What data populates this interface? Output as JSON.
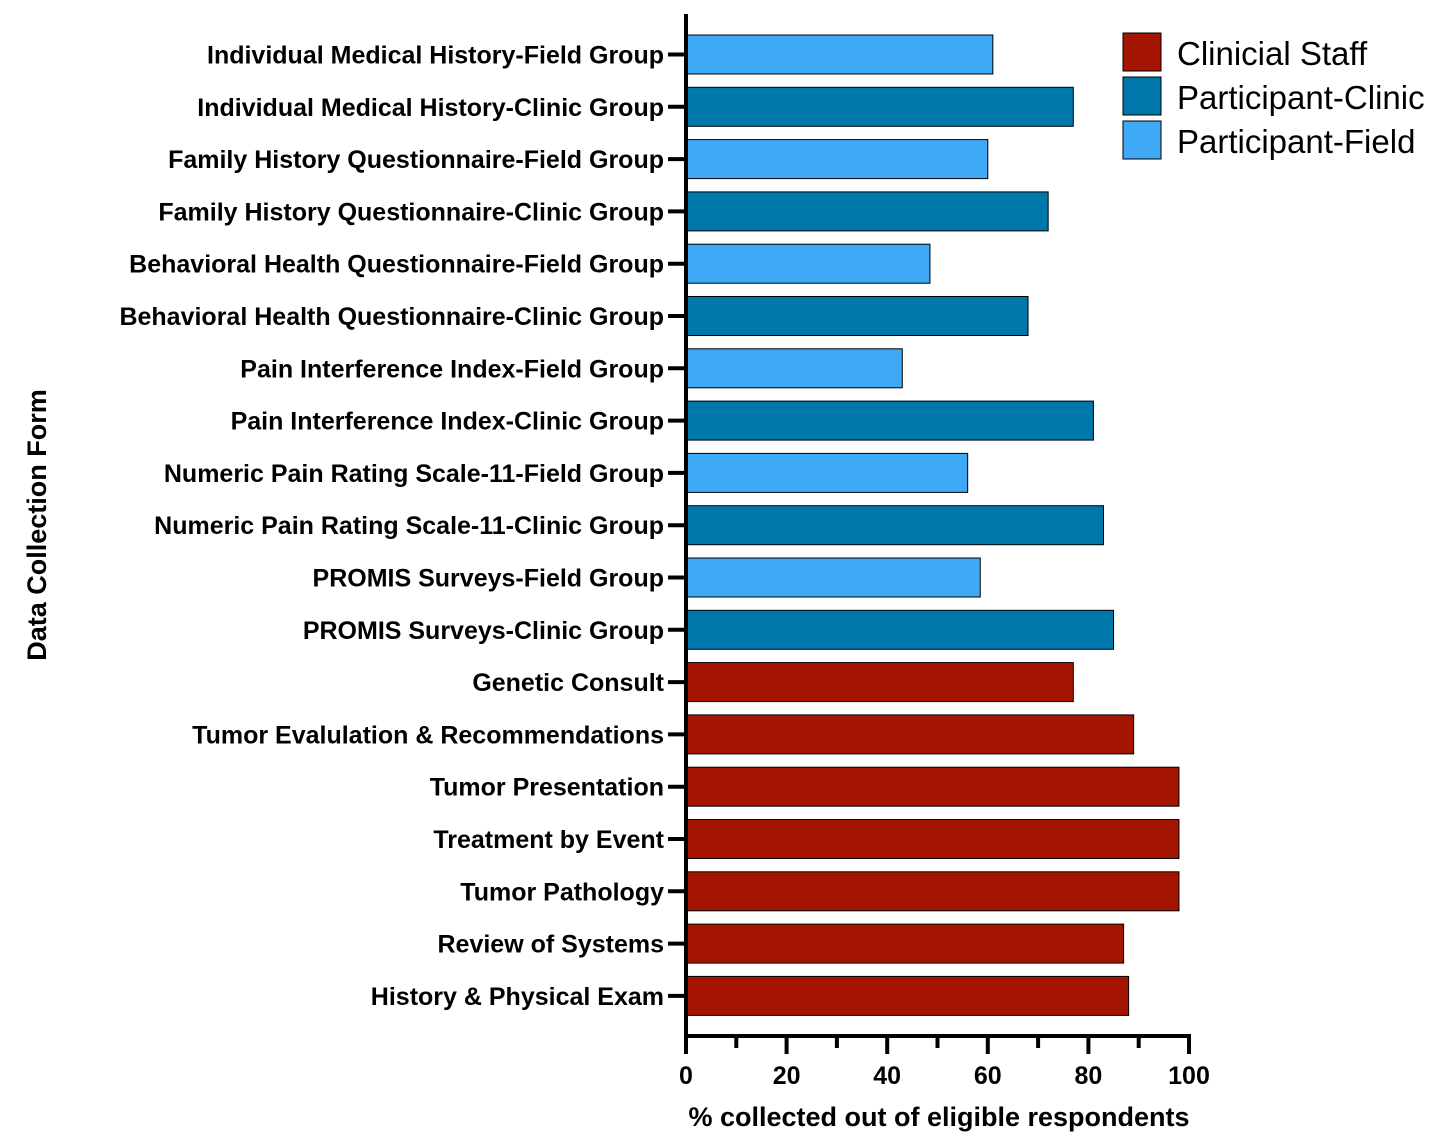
{
  "chart_data": {
    "type": "bar",
    "orientation": "horizontal",
    "xlabel": "% collected out of eligible respondents",
    "ylabel": "Data Collection Form",
    "xlim": [
      0,
      100
    ],
    "xticks": [
      0,
      20,
      40,
      60,
      80,
      100
    ],
    "grid": false,
    "legend_position": "top-right",
    "legend": [
      {
        "name": "Clinicial Staff",
        "color": "#A51400"
      },
      {
        "name": "Participant-Clinic",
        "color": "#0077AA"
      },
      {
        "name": "Participant-Field",
        "color": "#3FA9F5"
      }
    ],
    "bars": [
      {
        "category": "Individual Medical History-Field Group",
        "value": 61,
        "group": "Participant-Field"
      },
      {
        "category": "Individual Medical History-Clinic Group",
        "value": 77,
        "group": "Participant-Clinic"
      },
      {
        "category": "Family History Questionnaire-Field Group",
        "value": 60,
        "group": "Participant-Field"
      },
      {
        "category": "Family History Questionnaire-Clinic Group",
        "value": 72,
        "group": "Participant-Clinic"
      },
      {
        "category": "Behavioral Health Questionnaire-Field Group",
        "value": 48.5,
        "group": "Participant-Field"
      },
      {
        "category": "Behavioral Health Questionnaire-Clinic Group",
        "value": 68,
        "group": "Participant-Clinic"
      },
      {
        "category": "Pain Interference Index-Field Group",
        "value": 43,
        "group": "Participant-Field"
      },
      {
        "category": "Pain Interference Index-Clinic Group",
        "value": 81,
        "group": "Participant-Clinic"
      },
      {
        "category": "Numeric Pain Rating Scale-11-Field Group",
        "value": 56,
        "group": "Participant-Field"
      },
      {
        "category": "Numeric Pain Rating Scale-11-Clinic Group",
        "value": 83,
        "group": "Participant-Clinic"
      },
      {
        "category": "PROMIS Surveys-Field Group",
        "value": 58.5,
        "group": "Participant-Field"
      },
      {
        "category": "PROMIS Surveys-Clinic Group",
        "value": 85,
        "group": "Participant-Clinic"
      },
      {
        "category": "Genetic Consult",
        "value": 77,
        "group": "Clinicial Staff"
      },
      {
        "category": "Tumor Evalulation & Recommendations",
        "value": 89,
        "group": "Clinicial Staff"
      },
      {
        "category": "Tumor Presentation",
        "value": 98,
        "group": "Clinicial Staff"
      },
      {
        "category": "Treatment by Event",
        "value": 98,
        "group": "Clinicial Staff"
      },
      {
        "category": "Tumor Pathology",
        "value": 98,
        "group": "Clinicial Staff"
      },
      {
        "category": "Review of Systems",
        "value": 87,
        "group": "Clinicial Staff"
      },
      {
        "category": "History & Physical Exam",
        "value": 88,
        "group": "Clinicial Staff"
      }
    ]
  }
}
